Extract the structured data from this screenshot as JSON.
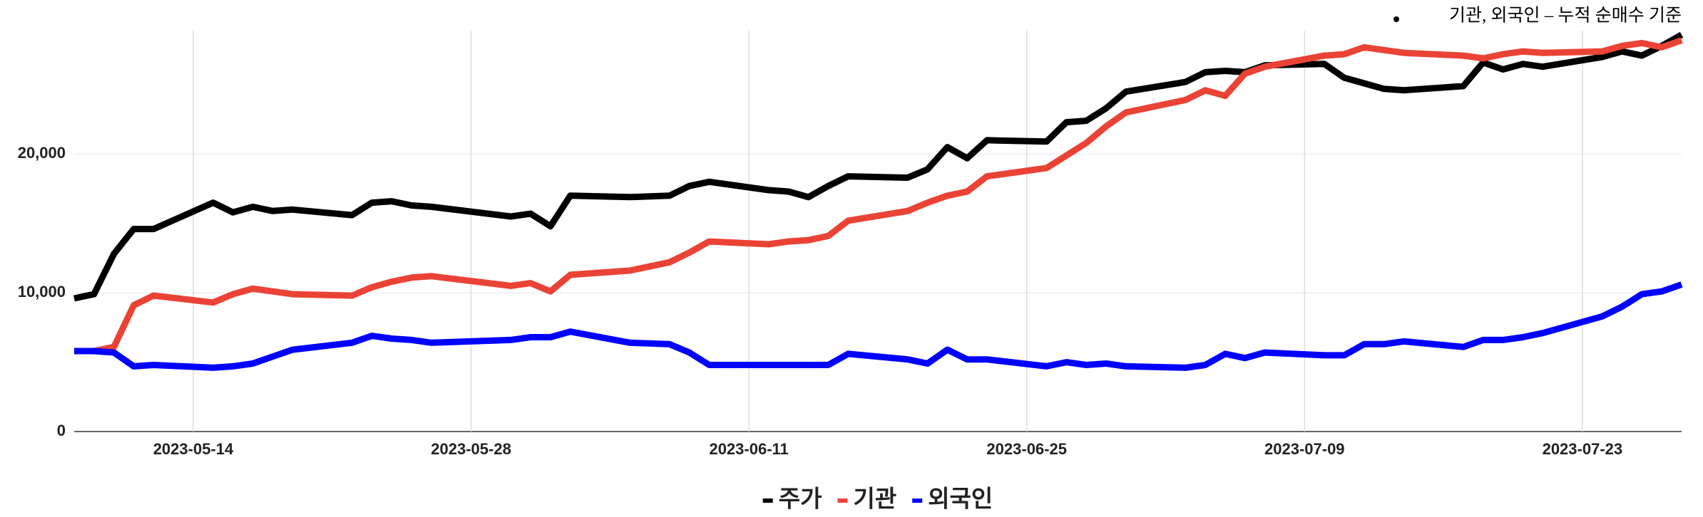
{
  "chart_data": {
    "type": "line",
    "annotation": "기관, 외국인 – 누적 순매수 기준",
    "x": [
      "2023-05-08",
      "2023-05-09",
      "2023-05-10",
      "2023-05-11",
      "2023-05-12",
      "2023-05-15",
      "2023-05-16",
      "2023-05-17",
      "2023-05-18",
      "2023-05-19",
      "2023-05-22",
      "2023-05-23",
      "2023-05-24",
      "2023-05-25",
      "2023-05-26",
      "2023-05-30",
      "2023-05-31",
      "2023-06-01",
      "2023-06-02",
      "2023-06-05",
      "2023-06-07",
      "2023-06-08",
      "2023-06-09",
      "2023-06-12",
      "2023-06-13",
      "2023-06-14",
      "2023-06-15",
      "2023-06-16",
      "2023-06-19",
      "2023-06-20",
      "2023-06-21",
      "2023-06-22",
      "2023-06-23",
      "2023-06-26",
      "2023-06-27",
      "2023-06-28",
      "2023-06-29",
      "2023-06-30",
      "2023-07-03",
      "2023-07-04",
      "2023-07-05",
      "2023-07-06",
      "2023-07-07",
      "2023-07-10",
      "2023-07-11",
      "2023-07-12",
      "2023-07-13",
      "2023-07-14",
      "2023-07-17",
      "2023-07-18",
      "2023-07-19",
      "2023-07-20",
      "2023-07-21",
      "2023-07-24",
      "2023-07-25",
      "2023-07-26",
      "2023-07-27",
      "2023-07-28"
    ],
    "series": [
      {
        "name": "주가",
        "color": "#000000",
        "values": [
          9600,
          9900,
          12800,
          14600,
          14600,
          16500,
          15800,
          16200,
          15900,
          16000,
          15600,
          16500,
          16600,
          16300,
          16200,
          15500,
          15700,
          14800,
          17000,
          16900,
          17000,
          17700,
          18000,
          17400,
          17300,
          16900,
          17700,
          18400,
          18300,
          18900,
          20500,
          19700,
          21000,
          20900,
          22300,
          22400,
          23300,
          24500,
          25200,
          25900,
          26000,
          25900,
          26400,
          26500,
          25500,
          25100,
          24700,
          24600,
          24900,
          26600,
          26100,
          26500,
          26300,
          27000,
          27400,
          27100,
          27800,
          28600
        ]
      },
      {
        "name": "기관",
        "color": "#ea4335",
        "values": [
          5800,
          5800,
          6100,
          9100,
          9800,
          9300,
          9900,
          10300,
          10100,
          9900,
          9800,
          10400,
          10800,
          11100,
          11200,
          10500,
          10700,
          10100,
          11300,
          11600,
          12200,
          12900,
          13700,
          13500,
          13700,
          13800,
          14100,
          15200,
          15900,
          16500,
          17000,
          17300,
          18400,
          19000,
          19900,
          20800,
          22000,
          23000,
          23900,
          24600,
          24200,
          25800,
          26300,
          27100,
          27200,
          27700,
          27500,
          27300,
          27100,
          26900,
          27200,
          27400,
          27300,
          27400,
          27800,
          28000,
          27700,
          28200
        ]
      },
      {
        "name": "외국인",
        "color": "#0000ff",
        "values": [
          5800,
          5800,
          5700,
          4700,
          4800,
          4600,
          4700,
          4900,
          5400,
          5900,
          6400,
          6900,
          6700,
          6600,
          6400,
          6600,
          6800,
          6800,
          7200,
          6400,
          6300,
          5700,
          4800,
          4800,
          4800,
          4800,
          4800,
          5600,
          5200,
          4900,
          5900,
          5200,
          5200,
          4700,
          5000,
          4800,
          4900,
          4700,
          4600,
          4800,
          5600,
          5300,
          5700,
          5500,
          5500,
          6300,
          6300,
          6500,
          6100,
          6600,
          6600,
          6800,
          7100,
          8300,
          9000,
          9900,
          10100,
          10600
        ]
      }
    ],
    "xlim": [
      "2023-05-08",
      "2023-07-28"
    ],
    "xticks": [
      "2023-05-14",
      "2023-05-28",
      "2023-06-11",
      "2023-06-25",
      "2023-07-09",
      "2023-07-23"
    ],
    "ylim": [
      0,
      28900
    ],
    "yticks": [
      0,
      {
        "value": 10000,
        "label": "10,000"
      },
      {
        "value": 20000,
        "label": "20,000"
      }
    ],
    "grid": true,
    "legend": "bottom"
  }
}
